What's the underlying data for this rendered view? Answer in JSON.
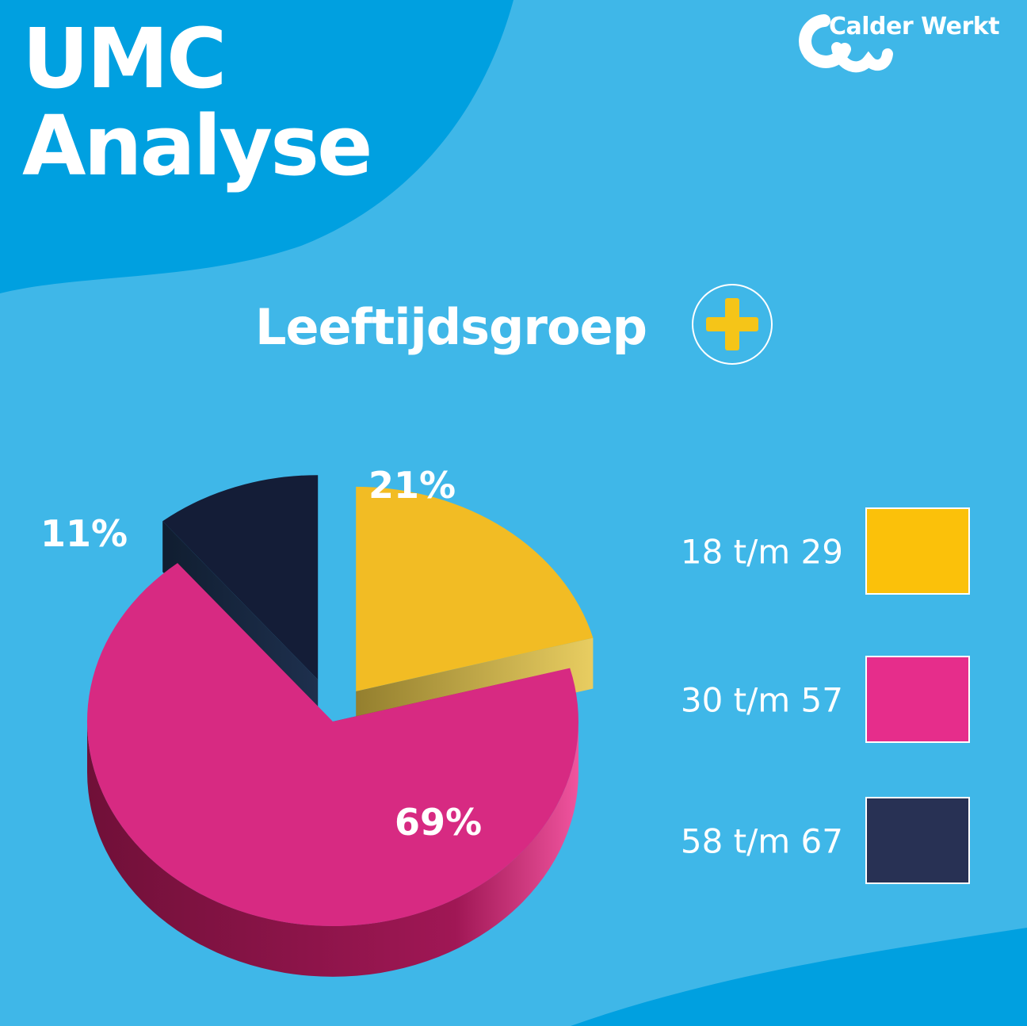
{
  "header": {
    "title_line1": "UMC",
    "title_line2": "Analyse",
    "logo_text": "Calder Werkt",
    "logo_icon": "calder-werkt-logo-icon"
  },
  "colors": {
    "background": "#3fb7e8",
    "dark_wave": "#00a0e0",
    "yellow": "#f2bc24",
    "pink": "#d72a82",
    "navy": "#141d37",
    "plus": "#f5c518"
  },
  "chart_data": {
    "type": "pie",
    "title": "Leeftijdsgroep",
    "style": "3d-exploded",
    "categories": [
      "18 t/m 29",
      "30 t/m 57",
      "58 t/m 67"
    ],
    "values": [
      21,
      69,
      11
    ],
    "data_labels": [
      "21%",
      "69%",
      "11%"
    ],
    "series_colors": [
      "#f2bc24",
      "#d72a82",
      "#141d37"
    ],
    "legend_swatch_colors": [
      "#fbc10a",
      "#e62d8b",
      "#283154"
    ],
    "legend_position": "right"
  }
}
